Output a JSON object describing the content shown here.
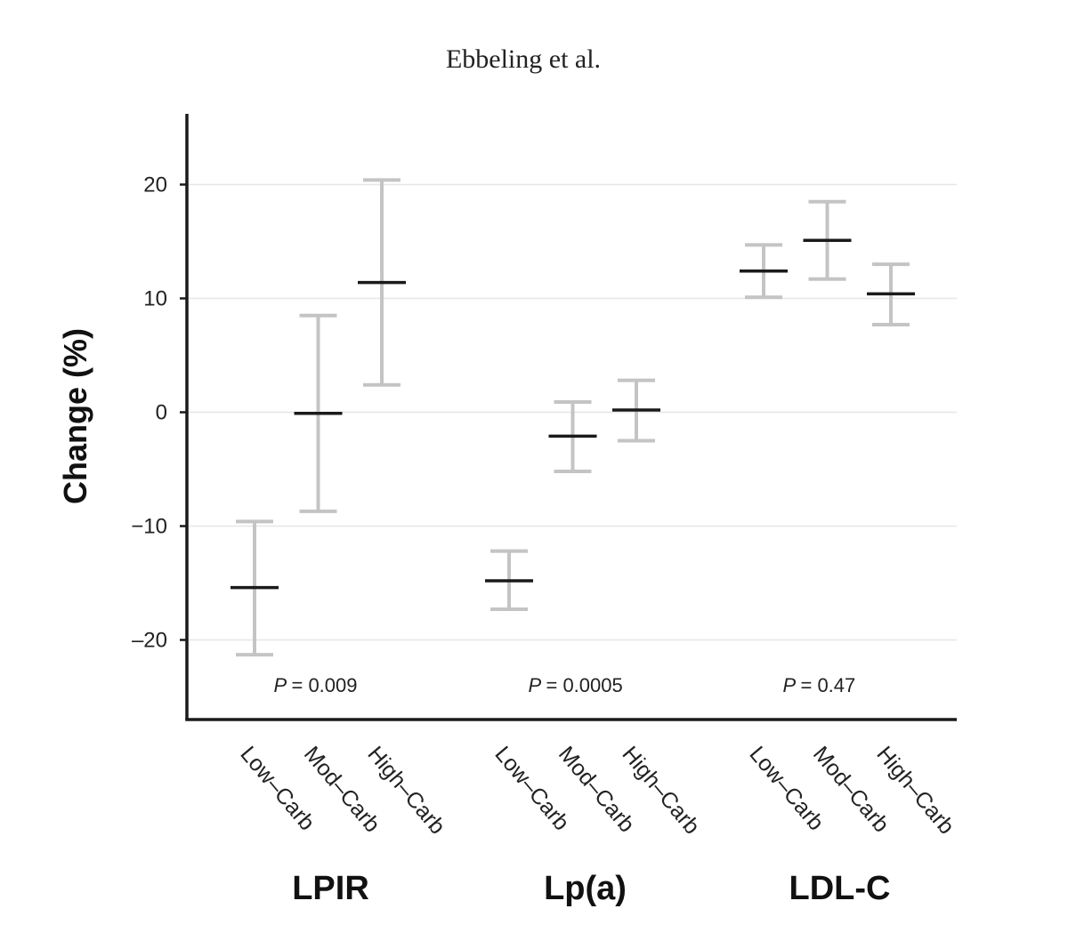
{
  "header": {
    "citation": "Ebbeling et al."
  },
  "colors": {
    "axis": "#1a1a1a",
    "grid": "#e6e6e6",
    "error_bar": "#c4c4c4",
    "point_estimate": "#1a1a1a"
  },
  "chart_data": {
    "type": "errorbar",
    "title": "",
    "xlabel": "",
    "ylabel": "Change (%)",
    "ylim": [
      -27,
      26
    ],
    "yticks": [
      20,
      10,
      0,
      -10,
      -20
    ],
    "ytick_labels": [
      "20",
      "10",
      "0",
      "−10",
      "–20"
    ],
    "grid": "horizontal",
    "categories": [
      "Low–Carb",
      "Mod–Carb",
      "High–Carb"
    ],
    "groups": [
      {
        "name": "LPIR",
        "p_prefix": "P",
        "p_value": "= 0.009",
        "points": [
          {
            "category": "Low–Carb",
            "estimate": -15.4,
            "lower": -21.3,
            "upper": -9.6
          },
          {
            "category": "Mod–Carb",
            "estimate": -0.1,
            "lower": -8.7,
            "upper": 8.5
          },
          {
            "category": "High–Carb",
            "estimate": 11.4,
            "lower": 2.4,
            "upper": 20.4
          }
        ]
      },
      {
        "name": "Lp(a)",
        "p_prefix": "P",
        "p_value": "= 0.0005",
        "points": [
          {
            "category": "Low–Carb",
            "estimate": -14.8,
            "lower": -17.3,
            "upper": -12.2
          },
          {
            "category": "Mod–Carb",
            "estimate": -2.1,
            "lower": -5.2,
            "upper": 0.9
          },
          {
            "category": "High–Carb",
            "estimate": 0.2,
            "lower": -2.5,
            "upper": 2.8
          }
        ]
      },
      {
        "name": "LDL-C",
        "p_prefix": "P",
        "p_value": "= 0.47",
        "points": [
          {
            "category": "Low–Carb",
            "estimate": 12.4,
            "lower": 10.1,
            "upper": 14.7
          },
          {
            "category": "Mod–Carb",
            "estimate": 15.1,
            "lower": 11.7,
            "upper": 18.5
          },
          {
            "category": "High–Carb",
            "estimate": 10.4,
            "lower": 7.7,
            "upper": 13.0
          }
        ]
      }
    ]
  }
}
